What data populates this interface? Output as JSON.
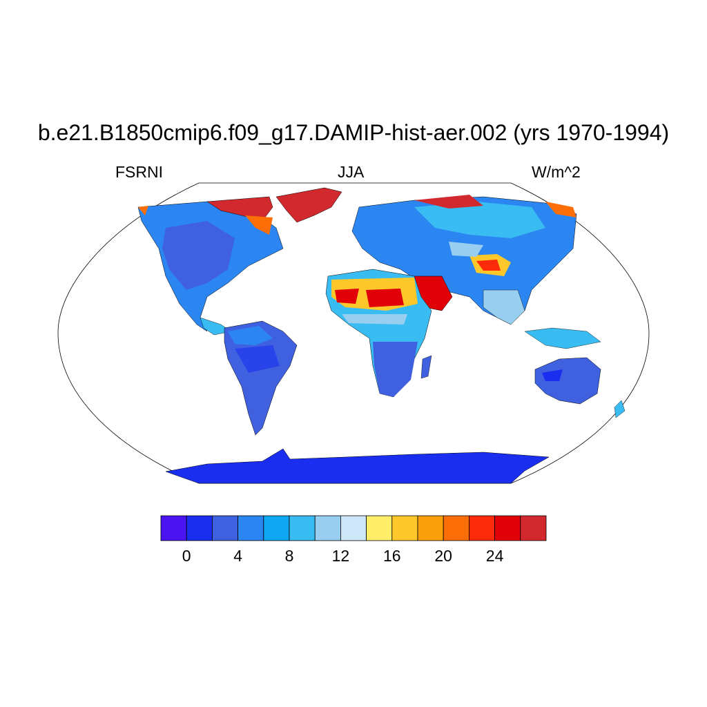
{
  "header": {
    "title": "b.e21.B1850cmip6.f09_g17.DAMIP-hist-aer.002 (yrs 1970-1994)",
    "left_label": "FSRNI",
    "center_label": "JJA",
    "right_label": "W/m^2"
  },
  "map": {
    "projection": "Robinson-like world map",
    "variable": "FSRNI",
    "season": "JJA",
    "units": "W/m^2",
    "ocean_color": "#ffffff",
    "coastline_color": "#000000"
  },
  "colorbar": {
    "colors": [
      "#4a14f0",
      "#1a2ef0",
      "#3f61e0",
      "#2c86f2",
      "#0fa6f4",
      "#38bcf2",
      "#98cef0",
      "#cde6f8",
      "#ffee6a",
      "#fec82a",
      "#fc9f0c",
      "#fd6e06",
      "#fb2a0a",
      "#e10007",
      "#d1292e"
    ],
    "tick_labels": [
      "0",
      "4",
      "8",
      "12",
      "16",
      "20",
      "24"
    ]
  }
}
